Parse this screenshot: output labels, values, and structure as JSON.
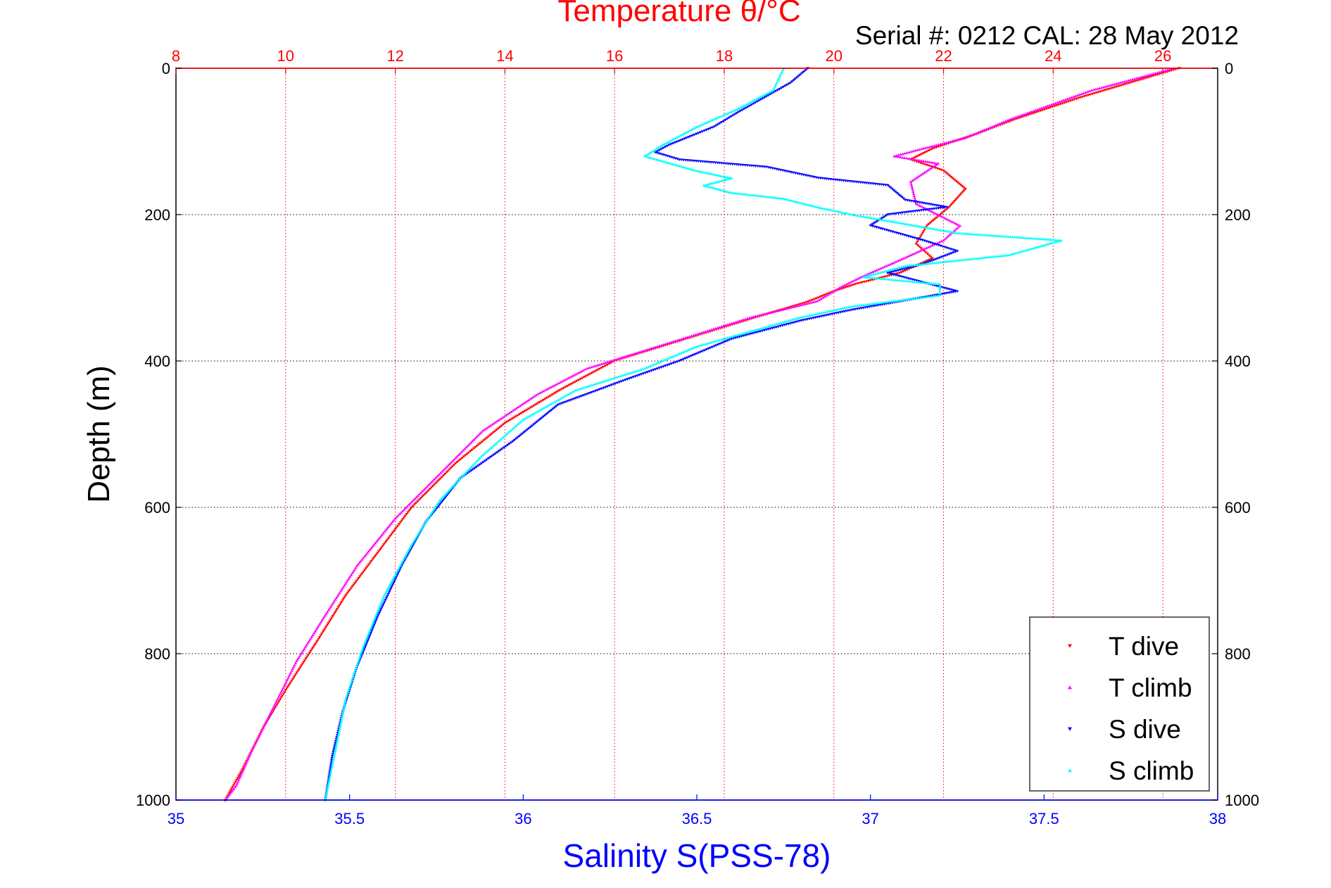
{
  "chart_data": {
    "type": "scatter",
    "title": "Temperature θ/°C",
    "subtitle": "Serial #: 0212  CAL: 28 May 2012",
    "xlabel": "Salinity S(PSS-78)",
    "ylabel": "Depth (m)",
    "ylim": [
      0,
      1000
    ],
    "y_reversed": true,
    "y_ticks": [
      "0",
      "200",
      "400",
      "600",
      "800",
      "1000"
    ],
    "temperature_axis": {
      "position": "top",
      "lim": [
        8,
        27
      ],
      "ticks": [
        "8",
        "10",
        "12",
        "14",
        "16",
        "18",
        "20",
        "22",
        "24",
        "26"
      ],
      "color": "#ff0000",
      "grid": true
    },
    "salinity_axis": {
      "position": "bottom",
      "lim": [
        35,
        38
      ],
      "ticks": [
        "35",
        "35.5",
        "36",
        "36.5",
        "37",
        "37.5",
        "38"
      ],
      "color": "#0000ff"
    },
    "legend_position": "bottom-right",
    "series": [
      {
        "name": "T dive",
        "axis": "temperature",
        "color": "#ff0000",
        "marker": "triangle-down",
        "points": [
          [
            26.3,
            0
          ],
          [
            24.5,
            40
          ],
          [
            23.3,
            70
          ],
          [
            22.6,
            90
          ],
          [
            21.8,
            110
          ],
          [
            21.4,
            125
          ],
          [
            22.0,
            140
          ],
          [
            22.4,
            165
          ],
          [
            22.1,
            190
          ],
          [
            21.7,
            215
          ],
          [
            21.5,
            240
          ],
          [
            21.8,
            260
          ],
          [
            21.2,
            280
          ],
          [
            20.4,
            295
          ],
          [
            20.0,
            305
          ],
          [
            19.5,
            320
          ],
          [
            18.6,
            340
          ],
          [
            17.3,
            370
          ],
          [
            16.0,
            400
          ],
          [
            15.0,
            440
          ],
          [
            14.0,
            485
          ],
          [
            13.1,
            540
          ],
          [
            12.3,
            600
          ],
          [
            11.7,
            660
          ],
          [
            11.1,
            720
          ],
          [
            10.6,
            780
          ],
          [
            10.0,
            850
          ],
          [
            9.6,
            900
          ],
          [
            9.2,
            960
          ],
          [
            8.9,
            1000
          ]
        ]
      },
      {
        "name": "T climb",
        "axis": "temperature",
        "color": "#ff00ff",
        "marker": "triangle-up",
        "points": [
          [
            26.2,
            0
          ],
          [
            24.7,
            30
          ],
          [
            23.2,
            70
          ],
          [
            22.4,
            95
          ],
          [
            21.6,
            110
          ],
          [
            21.1,
            120
          ],
          [
            21.9,
            130
          ],
          [
            21.4,
            155
          ],
          [
            21.5,
            185
          ],
          [
            22.3,
            215
          ],
          [
            22.0,
            235
          ],
          [
            21.2,
            262
          ],
          [
            20.5,
            285
          ],
          [
            20.1,
            300
          ],
          [
            19.7,
            318
          ],
          [
            18.5,
            340
          ],
          [
            17.0,
            375
          ],
          [
            15.5,
            410
          ],
          [
            14.6,
            445
          ],
          [
            13.6,
            495
          ],
          [
            12.8,
            555
          ],
          [
            12.0,
            615
          ],
          [
            11.3,
            680
          ],
          [
            10.7,
            750
          ],
          [
            10.2,
            810
          ],
          [
            9.8,
            870
          ],
          [
            9.4,
            930
          ],
          [
            9.1,
            980
          ],
          [
            8.9,
            1000
          ]
        ]
      },
      {
        "name": "S dive",
        "axis": "salinity",
        "color": "#0000ff",
        "marker": "triangle-down",
        "points": [
          [
            36.82,
            0
          ],
          [
            36.77,
            20
          ],
          [
            36.62,
            60
          ],
          [
            36.55,
            80
          ],
          [
            36.42,
            105
          ],
          [
            36.38,
            115
          ],
          [
            36.45,
            125
          ],
          [
            36.7,
            135
          ],
          [
            36.85,
            150
          ],
          [
            37.05,
            160
          ],
          [
            37.1,
            180
          ],
          [
            37.22,
            190
          ],
          [
            37.05,
            200
          ],
          [
            37.0,
            215
          ],
          [
            37.15,
            235
          ],
          [
            37.25,
            250
          ],
          [
            37.15,
            268
          ],
          [
            37.05,
            280
          ],
          [
            37.25,
            305
          ],
          [
            36.95,
            330
          ],
          [
            36.8,
            345
          ],
          [
            36.6,
            370
          ],
          [
            36.45,
            400
          ],
          [
            36.3,
            425
          ],
          [
            36.1,
            460
          ],
          [
            35.97,
            510
          ],
          [
            35.82,
            560
          ],
          [
            35.72,
            620
          ],
          [
            35.65,
            680
          ],
          [
            35.58,
            750
          ],
          [
            35.52,
            820
          ],
          [
            35.48,
            880
          ],
          [
            35.45,
            940
          ],
          [
            35.43,
            1000
          ]
        ]
      },
      {
        "name": "S climb",
        "axis": "salinity",
        "color": "#00ffff",
        "marker": "triangle-up",
        "points": [
          [
            36.75,
            0
          ],
          [
            36.72,
            30
          ],
          [
            36.62,
            55
          ],
          [
            36.5,
            80
          ],
          [
            36.4,
            105
          ],
          [
            36.35,
            120
          ],
          [
            36.5,
            140
          ],
          [
            36.6,
            150
          ],
          [
            36.52,
            160
          ],
          [
            36.6,
            170
          ],
          [
            36.75,
            178
          ],
          [
            36.85,
            190
          ],
          [
            36.95,
            200
          ],
          [
            37.25,
            225
          ],
          [
            37.55,
            235
          ],
          [
            37.4,
            255
          ],
          [
            37.1,
            270
          ],
          [
            36.98,
            285
          ],
          [
            37.2,
            295
          ],
          [
            37.2,
            310
          ],
          [
            36.95,
            325
          ],
          [
            36.8,
            340
          ],
          [
            36.5,
            380
          ],
          [
            36.35,
            410
          ],
          [
            36.15,
            440
          ],
          [
            36.0,
            480
          ],
          [
            35.88,
            530
          ],
          [
            35.76,
            590
          ],
          [
            35.68,
            650
          ],
          [
            35.6,
            720
          ],
          [
            35.54,
            790
          ],
          [
            35.49,
            860
          ],
          [
            35.46,
            930
          ],
          [
            35.43,
            1000
          ]
        ]
      }
    ]
  }
}
